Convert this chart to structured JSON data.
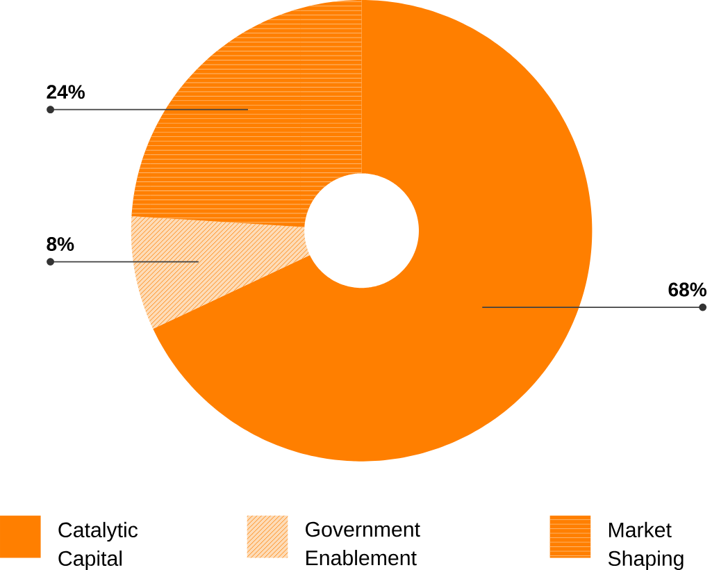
{
  "chart_data": {
    "type": "donut",
    "categories": [
      "Catalytic Capital",
      "Government Enablement",
      "Market Shaping"
    ],
    "values": [
      68,
      8,
      24
    ],
    "value_labels": [
      "68%",
      "8%",
      "24%"
    ],
    "colors": [
      "#ff7f00",
      "#fddcb8",
      "#ff7f00"
    ],
    "legend": "bottom"
  }
}
